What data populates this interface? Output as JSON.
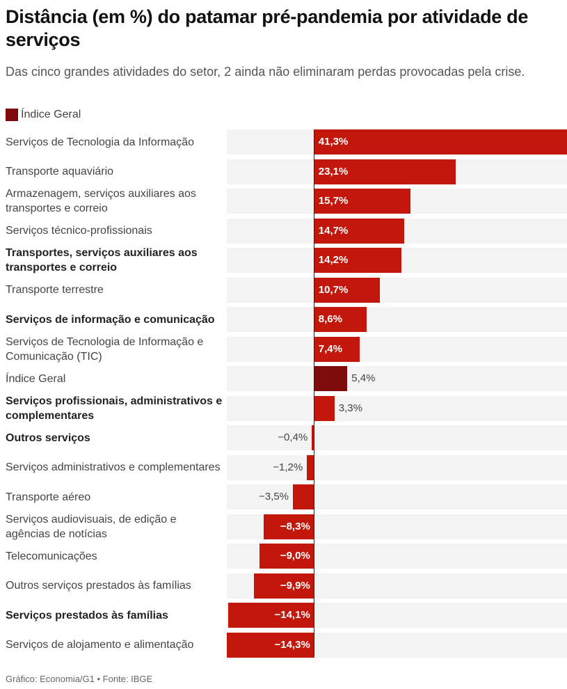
{
  "title": "Distância (em %) do patamar pré-pandemia por atividade de serviços",
  "subtitle": "Das cinco grandes atividades do setor, 2 ainda não eliminaram perdas provocadas pela crise.",
  "legend": [
    {
      "name": "Índice Geral",
      "color": "#7e0b0b"
    }
  ],
  "footer": "Gráfico: Economia/G1 • Fonte: IBGE",
  "colors": {
    "bar": "#c4170c",
    "highlight": "#7e0b0b",
    "row_background": "#f3f3f3"
  },
  "chart_data": {
    "type": "bar",
    "orientation": "horizontal",
    "title": "Distância (em %) do patamar pré-pandemia por atividade de serviços",
    "subtitle": "Das cinco grandes atividades do setor, 2 ainda não eliminaram perdas provocadas pela crise.",
    "xlim": [
      -14.3,
      41.3
    ],
    "grid": false,
    "legend_position": "top-left",
    "categories": [
      "Serviços de Tecnologia da Informação",
      "Transporte aquaviário",
      "Armazenagem, serviços auxiliares aos transportes e correio",
      "Serviços técnico-profissionais",
      "Transportes, serviços auxiliares aos transportes e correio",
      "Transporte terrestre",
      "Serviços de informação e comunicação",
      "Serviços de Tecnologia de Informação e Comunicação (TIC)",
      "Índice Geral",
      "Serviços profissionais, administrativos e complementares",
      "Outros serviços",
      "Serviços administrativos e complementares",
      "Transporte aéreo",
      "Serviços audiovisuais, de edição e agências de notícias",
      "Telecomunicações",
      "Outros serviços prestados às famílias",
      "Serviços prestados às famílias",
      "Serviços de alojamento e alimentação"
    ],
    "values": [
      41.3,
      23.1,
      15.7,
      14.7,
      14.2,
      10.7,
      8.6,
      7.4,
      5.4,
      3.3,
      -0.4,
      -1.2,
      -3.5,
      -8.3,
      -9.0,
      -9.9,
      -14.1,
      -14.3
    ],
    "value_labels": [
      "41,3%",
      "23,1%",
      "15,7%",
      "14,7%",
      "14,2%",
      "10,7%",
      "8,6%",
      "7,4%",
      "5,4%",
      "3,3%",
      "−0,4%",
      "−1,2%",
      "−3,5%",
      "−8,3%",
      "−9,0%",
      "−9,9%",
      "−14,1%",
      "−14,3%"
    ],
    "bold_categories": [
      4,
      6,
      9,
      10,
      16
    ],
    "highlighted_category": 8
  }
}
